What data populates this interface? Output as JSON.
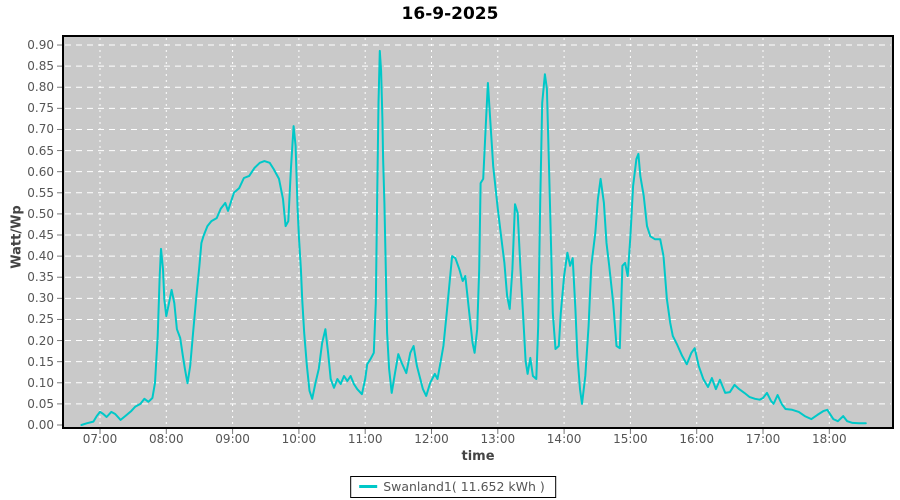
{
  "title": "16-9-2025",
  "y_axis": {
    "label": "Watt/Wp",
    "ticks": [
      "0.00",
      "0.05",
      "0.10",
      "0.15",
      "0.20",
      "0.25",
      "0.30",
      "0.35",
      "0.40",
      "0.45",
      "0.50",
      "0.55",
      "0.60",
      "0.65",
      "0.70",
      "0.75",
      "0.80",
      "0.85",
      "0.90"
    ]
  },
  "x_axis": {
    "label": "time",
    "ticks": [
      "07:00",
      "08:00",
      "09:00",
      "10:00",
      "11:00",
      "12:00",
      "13:00",
      "14:00",
      "15:00",
      "16:00",
      "17:00",
      "18:00"
    ]
  },
  "legend": {
    "label": "Swanland1( 11.652 kWh )"
  },
  "colors": {
    "line": "#00C8C8",
    "plot_bg": "#C9C9C9",
    "grid": "#FFFFFF",
    "border": "#000000",
    "tick": "#777777",
    "tick_text": "#555555",
    "axis_label_text": "#444444",
    "title_text": "#000000"
  },
  "chart_data": {
    "type": "line",
    "title": "16-9-2025",
    "xlabel": "time",
    "ylabel": "Watt/Wp",
    "x_unit": "decimal_hours",
    "xlim": [
      6.44,
      18.96
    ],
    "ylim": [
      0,
      0.92
    ],
    "x_ticks_hours": [
      7,
      8,
      9,
      10,
      11,
      12,
      13,
      14,
      15,
      16,
      17,
      18
    ],
    "y_tick_step": 0.05,
    "grid": true,
    "legend_position": "bottom-center",
    "series": [
      {
        "name": "Swanland1( 11.652 kWh )",
        "color": "#00C8C8",
        "daily_energy_kwh": 11.652,
        "points": [
          [
            6.72,
            0.0
          ],
          [
            6.8,
            0.004
          ],
          [
            6.9,
            0.008
          ],
          [
            6.95,
            0.021
          ],
          [
            7.0,
            0.031
          ],
          [
            7.05,
            0.026
          ],
          [
            7.1,
            0.019
          ],
          [
            7.17,
            0.031
          ],
          [
            7.23,
            0.026
          ],
          [
            7.31,
            0.012
          ],
          [
            7.38,
            0.021
          ],
          [
            7.47,
            0.033
          ],
          [
            7.53,
            0.043
          ],
          [
            7.61,
            0.05
          ],
          [
            7.67,
            0.062
          ],
          [
            7.73,
            0.055
          ],
          [
            7.79,
            0.064
          ],
          [
            7.83,
            0.1
          ],
          [
            7.87,
            0.21
          ],
          [
            7.9,
            0.353
          ],
          [
            7.92,
            0.417
          ],
          [
            7.95,
            0.369
          ],
          [
            7.97,
            0.298
          ],
          [
            8.0,
            0.258
          ],
          [
            8.04,
            0.289
          ],
          [
            8.08,
            0.32
          ],
          [
            8.12,
            0.289
          ],
          [
            8.16,
            0.227
          ],
          [
            8.21,
            0.206
          ],
          [
            8.25,
            0.163
          ],
          [
            8.28,
            0.133
          ],
          [
            8.32,
            0.099
          ],
          [
            8.36,
            0.14
          ],
          [
            8.4,
            0.211
          ],
          [
            8.45,
            0.298
          ],
          [
            8.5,
            0.377
          ],
          [
            8.53,
            0.431
          ],
          [
            8.56,
            0.447
          ],
          [
            8.62,
            0.471
          ],
          [
            8.68,
            0.483
          ],
          [
            8.76,
            0.49
          ],
          [
            8.82,
            0.512
          ],
          [
            8.89,
            0.526
          ],
          [
            8.93,
            0.507
          ],
          [
            9.02,
            0.55
          ],
          [
            9.1,
            0.561
          ],
          [
            9.17,
            0.585
          ],
          [
            9.25,
            0.59
          ],
          [
            9.33,
            0.609
          ],
          [
            9.41,
            0.621
          ],
          [
            9.48,
            0.625
          ],
          [
            9.56,
            0.621
          ],
          [
            9.62,
            0.606
          ],
          [
            9.7,
            0.583
          ],
          [
            9.76,
            0.535
          ],
          [
            9.8,
            0.471
          ],
          [
            9.84,
            0.483
          ],
          [
            9.88,
            0.606
          ],
          [
            9.92,
            0.708
          ],
          [
            9.95,
            0.661
          ],
          [
            9.98,
            0.512
          ],
          [
            10.0,
            0.447
          ],
          [
            10.03,
            0.369
          ],
          [
            10.05,
            0.298
          ],
          [
            10.08,
            0.218
          ],
          [
            10.12,
            0.14
          ],
          [
            10.16,
            0.081
          ],
          [
            10.2,
            0.062
          ],
          [
            10.25,
            0.1
          ],
          [
            10.3,
            0.133
          ],
          [
            10.35,
            0.194
          ],
          [
            10.4,
            0.227
          ],
          [
            10.44,
            0.171
          ],
          [
            10.48,
            0.109
          ],
          [
            10.53,
            0.088
          ],
          [
            10.58,
            0.109
          ],
          [
            10.63,
            0.097
          ],
          [
            10.68,
            0.116
          ],
          [
            10.73,
            0.104
          ],
          [
            10.78,
            0.116
          ],
          [
            10.83,
            0.097
          ],
          [
            10.88,
            0.085
          ],
          [
            10.95,
            0.073
          ],
          [
            11.0,
            0.109
          ],
          [
            11.03,
            0.144
          ],
          [
            11.08,
            0.156
          ],
          [
            11.13,
            0.171
          ],
          [
            11.16,
            0.289
          ],
          [
            11.18,
            0.526
          ],
          [
            11.2,
            0.763
          ],
          [
            11.22,
            0.886
          ],
          [
            11.24,
            0.839
          ],
          [
            11.26,
            0.725
          ],
          [
            11.27,
            0.632
          ],
          [
            11.29,
            0.526
          ],
          [
            11.31,
            0.369
          ],
          [
            11.33,
            0.218
          ],
          [
            11.36,
            0.133
          ],
          [
            11.4,
            0.076
          ],
          [
            11.45,
            0.123
          ],
          [
            11.5,
            0.168
          ],
          [
            11.55,
            0.147
          ],
          [
            11.62,
            0.123
          ],
          [
            11.68,
            0.171
          ],
          [
            11.73,
            0.187
          ],
          [
            11.78,
            0.14
          ],
          [
            11.87,
            0.085
          ],
          [
            11.92,
            0.069
          ],
          [
            11.98,
            0.1
          ],
          [
            12.05,
            0.121
          ],
          [
            12.09,
            0.109
          ],
          [
            12.14,
            0.152
          ],
          [
            12.18,
            0.187
          ],
          [
            12.23,
            0.265
          ],
          [
            12.31,
            0.4
          ],
          [
            12.36,
            0.395
          ],
          [
            12.42,
            0.369
          ],
          [
            12.47,
            0.341
          ],
          [
            12.51,
            0.353
          ],
          [
            12.57,
            0.265
          ],
          [
            12.62,
            0.194
          ],
          [
            12.65,
            0.171
          ],
          [
            12.69,
            0.227
          ],
          [
            12.72,
            0.369
          ],
          [
            12.74,
            0.573
          ],
          [
            12.78,
            0.583
          ],
          [
            12.82,
            0.716
          ],
          [
            12.85,
            0.81
          ],
          [
            12.88,
            0.739
          ],
          [
            12.93,
            0.613
          ],
          [
            13.0,
            0.512
          ],
          [
            13.05,
            0.447
          ],
          [
            13.1,
            0.384
          ],
          [
            13.14,
            0.306
          ],
          [
            13.18,
            0.275
          ],
          [
            13.22,
            0.369
          ],
          [
            13.26,
            0.523
          ],
          [
            13.3,
            0.502
          ],
          [
            13.34,
            0.377
          ],
          [
            13.38,
            0.265
          ],
          [
            13.42,
            0.152
          ],
          [
            13.45,
            0.121
          ],
          [
            13.49,
            0.159
          ],
          [
            13.53,
            0.116
          ],
          [
            13.58,
            0.109
          ],
          [
            13.61,
            0.235
          ],
          [
            13.64,
            0.526
          ],
          [
            13.67,
            0.763
          ],
          [
            13.71,
            0.831
          ],
          [
            13.74,
            0.796
          ],
          [
            13.77,
            0.621
          ],
          [
            13.8,
            0.447
          ],
          [
            13.83,
            0.265
          ],
          [
            13.87,
            0.18
          ],
          [
            13.92,
            0.187
          ],
          [
            13.95,
            0.265
          ],
          [
            14.0,
            0.353
          ],
          [
            14.05,
            0.408
          ],
          [
            14.09,
            0.377
          ],
          [
            14.13,
            0.395
          ],
          [
            14.17,
            0.275
          ],
          [
            14.2,
            0.164
          ],
          [
            14.24,
            0.085
          ],
          [
            14.27,
            0.05
          ],
          [
            14.32,
            0.116
          ],
          [
            14.37,
            0.235
          ],
          [
            14.41,
            0.377
          ],
          [
            14.47,
            0.455
          ],
          [
            14.51,
            0.535
          ],
          [
            14.55,
            0.583
          ],
          [
            14.6,
            0.526
          ],
          [
            14.64,
            0.431
          ],
          [
            14.68,
            0.377
          ],
          [
            14.74,
            0.289
          ],
          [
            14.79,
            0.187
          ],
          [
            14.84,
            0.182
          ],
          [
            14.88,
            0.377
          ],
          [
            14.92,
            0.384
          ],
          [
            14.96,
            0.353
          ],
          [
            15.0,
            0.447
          ],
          [
            15.04,
            0.566
          ],
          [
            15.09,
            0.63
          ],
          [
            15.12,
            0.642
          ],
          [
            15.15,
            0.59
          ],
          [
            15.2,
            0.543
          ],
          [
            15.25,
            0.471
          ],
          [
            15.3,
            0.447
          ],
          [
            15.37,
            0.44
          ],
          [
            15.45,
            0.44
          ],
          [
            15.5,
            0.4
          ],
          [
            15.55,
            0.298
          ],
          [
            15.6,
            0.242
          ],
          [
            15.64,
            0.211
          ],
          [
            15.7,
            0.192
          ],
          [
            15.78,
            0.164
          ],
          [
            15.85,
            0.144
          ],
          [
            15.92,
            0.171
          ],
          [
            15.97,
            0.182
          ],
          [
            16.03,
            0.14
          ],
          [
            16.1,
            0.109
          ],
          [
            16.17,
            0.09
          ],
          [
            16.23,
            0.111
          ],
          [
            16.29,
            0.085
          ],
          [
            16.35,
            0.107
          ],
          [
            16.43,
            0.076
          ],
          [
            16.5,
            0.078
          ],
          [
            16.57,
            0.095
          ],
          [
            16.64,
            0.085
          ],
          [
            16.72,
            0.076
          ],
          [
            16.8,
            0.066
          ],
          [
            16.88,
            0.062
          ],
          [
            16.95,
            0.06
          ],
          [
            17.0,
            0.064
          ],
          [
            17.06,
            0.076
          ],
          [
            17.12,
            0.057
          ],
          [
            17.16,
            0.05
          ],
          [
            17.22,
            0.071
          ],
          [
            17.28,
            0.05
          ],
          [
            17.34,
            0.038
          ],
          [
            17.44,
            0.036
          ],
          [
            17.54,
            0.031
          ],
          [
            17.63,
            0.021
          ],
          [
            17.73,
            0.014
          ],
          [
            17.82,
            0.024
          ],
          [
            17.91,
            0.033
          ],
          [
            17.97,
            0.036
          ],
          [
            18.06,
            0.014
          ],
          [
            18.13,
            0.009
          ],
          [
            18.21,
            0.021
          ],
          [
            18.27,
            0.009
          ],
          [
            18.35,
            0.005
          ],
          [
            18.45,
            0.004
          ],
          [
            18.55,
            0.004
          ]
        ]
      }
    ]
  }
}
